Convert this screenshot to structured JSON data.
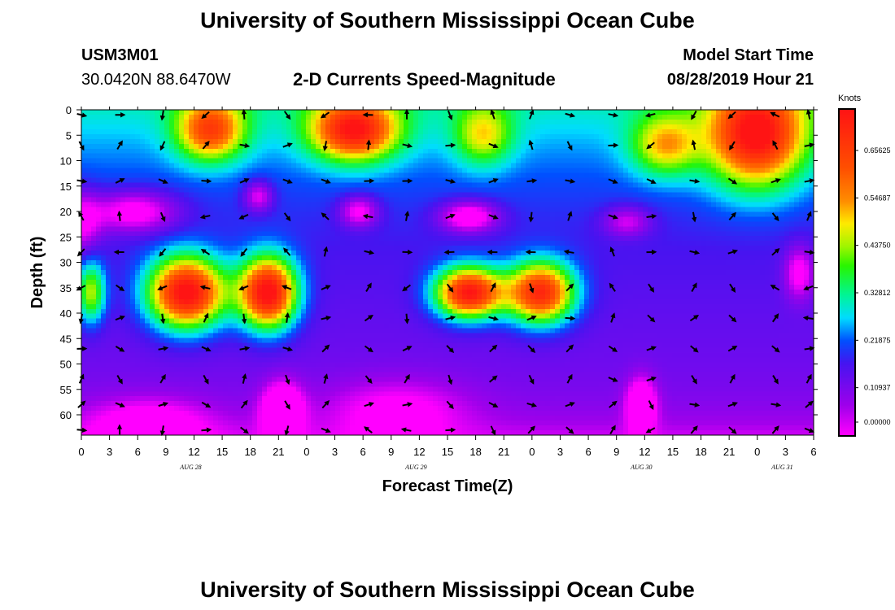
{
  "page": {
    "title_top": "University of Southern Mississippi Ocean Cube",
    "title_bottom": "University of Southern Mississippi Ocean Cube",
    "station_id": "USM3M01",
    "station_coords": "30.0420N 88.6470W",
    "plot_title": "2-D Currents Speed-Magnitude",
    "model_start_label": "Model Start Time",
    "model_start_value": "08/28/2019 Hour 21"
  },
  "chart_data": {
    "type": "heatmap",
    "title": "2-D Currents Speed-Magnitude",
    "xlabel": "Forecast Time(Z)",
    "ylabel": "Depth (ft)",
    "x_tick_labels": [
      "0",
      "3",
      "6",
      "9",
      "12",
      "15",
      "18",
      "21",
      "0",
      "3",
      "6",
      "9",
      "12",
      "15",
      "18",
      "21",
      "0",
      "3",
      "6",
      "9",
      "12",
      "15",
      "18",
      "21",
      "0",
      "3",
      "6"
    ],
    "date_labels": [
      {
        "label": "AUG 28",
        "tick_index": 4
      },
      {
        "label": "AUG 29",
        "tick_index": 12
      },
      {
        "label": "AUG 30",
        "tick_index": 20
      },
      {
        "label": "AUG 31",
        "tick_index": 25
      }
    ],
    "y_ticks": [
      0,
      5,
      10,
      15,
      20,
      25,
      30,
      35,
      40,
      45,
      50,
      55,
      60
    ],
    "ylim": [
      0,
      64
    ],
    "y_inverted": true,
    "colorbar": {
      "title": "Knots",
      "labels": [
        "0.65625",
        "0.54687",
        "0.43750",
        "0.32812",
        "0.21875",
        "0.10937",
        "0.00000"
      ],
      "vmin": 0,
      "vmax": 0.75
    },
    "speed_blobs": [
      {
        "t": 27,
        "d": 4,
        "sx": 7,
        "sy": 6,
        "v": 0.4
      },
      {
        "t": 57,
        "d": 4,
        "sx": 9,
        "sy": 6,
        "v": 0.5
      },
      {
        "t": 141,
        "d": 5,
        "sx": 10,
        "sy": 10,
        "v": 0.53
      },
      {
        "t": 122,
        "d": 7,
        "sx": 7,
        "sy": 6,
        "v": 0.28
      },
      {
        "t": 22,
        "d": 36,
        "sx": 8,
        "sy": 7,
        "v": 0.63
      },
      {
        "t": 39,
        "d": 36,
        "sx": 6,
        "sy": 7,
        "v": 0.63
      },
      {
        "t": 81,
        "d": 36,
        "sx": 7,
        "sy": 5,
        "v": 0.6
      },
      {
        "t": 96,
        "d": 36,
        "sx": 7,
        "sy": 6,
        "v": 0.56
      },
      {
        "t": 84,
        "d": 5,
        "sx": 6,
        "sy": 6,
        "v": 0.24
      },
      {
        "t": 2,
        "d": 36,
        "sx": 3,
        "sy": 6,
        "v": 0.3
      },
      {
        "t": 11,
        "d": 20,
        "sx": 9,
        "sy": 4,
        "v": -0.22
      },
      {
        "t": 0,
        "d": 22,
        "sx": 4,
        "sy": 6,
        "v": -0.18
      },
      {
        "t": 37,
        "d": 17,
        "sx": 3,
        "sy": 3,
        "v": -0.18
      },
      {
        "t": 58,
        "d": 20,
        "sx": 4,
        "sy": 3,
        "v": -0.2
      },
      {
        "t": 81,
        "d": 21,
        "sx": 6,
        "sy": 3,
        "v": -0.24
      },
      {
        "t": 114,
        "d": 22,
        "sx": 5,
        "sy": 3,
        "v": -0.15
      },
      {
        "t": 150,
        "d": 32,
        "sx": 3,
        "sy": 5,
        "v": -0.18
      },
      {
        "t": 42,
        "d": 59,
        "sx": 4,
        "sy": 5,
        "v": -0.28
      },
      {
        "t": 117,
        "d": 58,
        "sx": 3,
        "sy": 5,
        "v": -0.24
      },
      {
        "t": 66,
        "d": 59,
        "sx": 14,
        "sy": 6,
        "v": -0.12
      },
      {
        "t": 14,
        "d": 62,
        "sx": 12,
        "sy": 5,
        "v": -0.15
      }
    ],
    "speed_model": {
      "base": 0.3,
      "decay_ft": 24,
      "deep": 0.1,
      "bottom_ft": 64,
      "bottom_drop": 0.08,
      "bottom_decay_ft": 5
    },
    "vector_rows_ft": [
      1,
      7,
      14,
      21,
      28,
      35,
      41,
      47,
      53,
      58,
      63
    ],
    "vector_cols_h": [
      0,
      8,
      17,
      26,
      34,
      43,
      51,
      60,
      68,
      77,
      86,
      94,
      102,
      111,
      119,
      128,
      136,
      145,
      152
    ]
  }
}
